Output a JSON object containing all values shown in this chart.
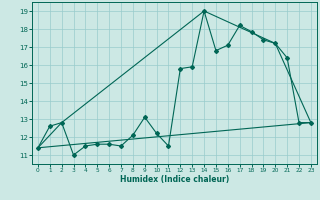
{
  "xlabel": "Humidex (Indice chaleur)",
  "bg_color": "#cce8e4",
  "grid_color": "#99cccc",
  "line_color": "#006655",
  "xlim": [
    -0.5,
    23.5
  ],
  "ylim": [
    10.5,
    19.5
  ],
  "xticks": [
    0,
    1,
    2,
    3,
    4,
    5,
    6,
    7,
    8,
    9,
    10,
    11,
    12,
    13,
    14,
    15,
    16,
    17,
    18,
    19,
    20,
    21,
    22,
    23
  ],
  "yticks": [
    11,
    12,
    13,
    14,
    15,
    16,
    17,
    18,
    19
  ],
  "line1_x": [
    0,
    1,
    2,
    3,
    4,
    5,
    6,
    7,
    8,
    9,
    10,
    11,
    12,
    13,
    14,
    15,
    16,
    17,
    18,
    19,
    20,
    21,
    22,
    23
  ],
  "line1_y": [
    11.4,
    12.6,
    12.8,
    11.0,
    11.5,
    11.6,
    11.6,
    11.5,
    12.1,
    13.1,
    12.2,
    11.5,
    15.8,
    15.9,
    19.0,
    16.8,
    17.1,
    18.2,
    17.85,
    17.4,
    17.2,
    16.4,
    12.8,
    12.8
  ],
  "line2_x": [
    0,
    2,
    14,
    20,
    23
  ],
  "line2_y": [
    11.4,
    12.8,
    19.0,
    17.2,
    12.8
  ],
  "line3_x": [
    0,
    23
  ],
  "line3_y": [
    11.4,
    12.8
  ]
}
